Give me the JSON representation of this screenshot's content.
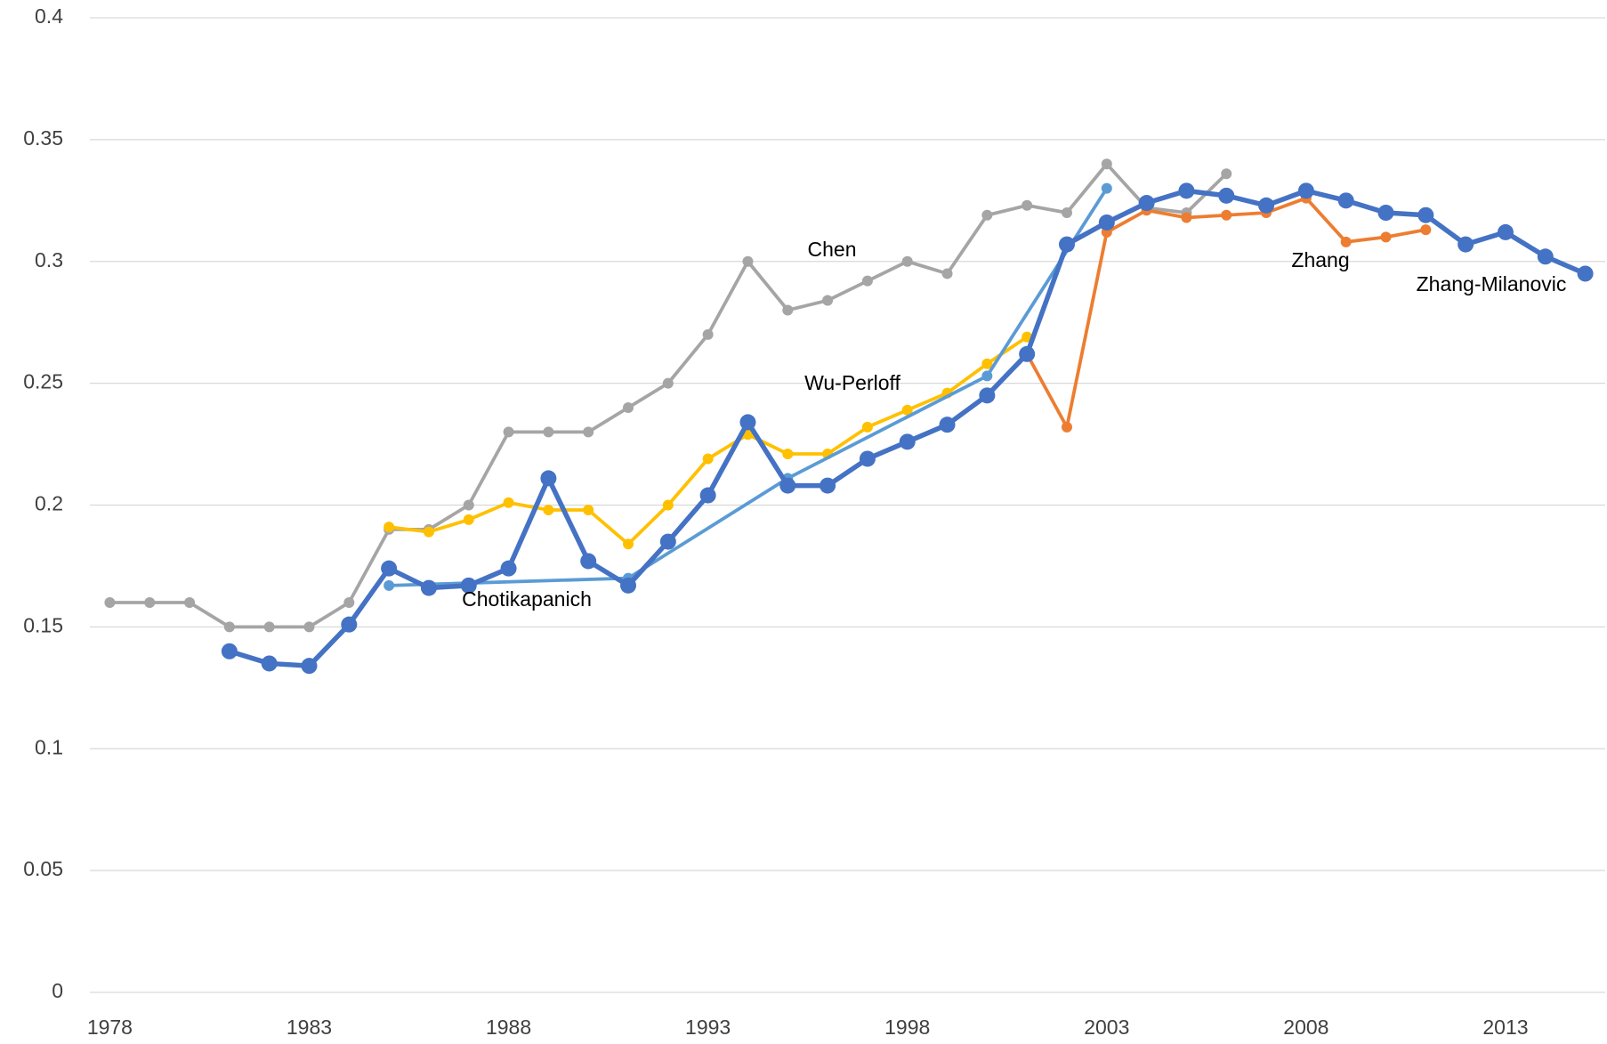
{
  "chart_data": {
    "type": "line",
    "xlim": [
      1977.5,
      2015.5
    ],
    "xticks": [
      1978,
      1983,
      1988,
      1993,
      1998,
      2003,
      2008,
      2013
    ],
    "ylim": [
      0,
      0.4
    ],
    "yticks": [
      0,
      0.05,
      0.1,
      0.15,
      0.2,
      0.25,
      0.3,
      0.35,
      0.4
    ],
    "grid": true,
    "series": [
      {
        "name": "Chen",
        "color": "#a5a5a5",
        "x": [
          1978,
          1979,
          1980,
          1981,
          1982,
          1983,
          1984,
          1985,
          1986,
          1987,
          1988,
          1989,
          1990,
          1991,
          1992,
          1993,
          1994,
          1995,
          1996,
          1997,
          1998,
          1999,
          2000,
          2001,
          2002,
          2003,
          2004,
          2005,
          2006
        ],
        "values": [
          0.16,
          0.16,
          0.16,
          0.15,
          0.15,
          0.15,
          0.16,
          0.19,
          0.19,
          0.2,
          0.23,
          0.23,
          0.23,
          0.24,
          0.25,
          0.27,
          0.3,
          0.28,
          0.284,
          0.292,
          0.3,
          0.295,
          0.319,
          0.323,
          0.32,
          0.34,
          0.322,
          0.32,
          0.336
        ]
      },
      {
        "name": "Wu-Perloff",
        "color": "#ffc000",
        "x": [
          1985,
          1986,
          1987,
          1988,
          1989,
          1990,
          1991,
          1992,
          1993,
          1994,
          1995,
          1996,
          1997,
          1998,
          1999,
          2000,
          2001
        ],
        "values": [
          0.191,
          0.189,
          0.194,
          0.201,
          0.198,
          0.198,
          0.184,
          0.2,
          0.219,
          0.229,
          0.221,
          0.221,
          0.232,
          0.239,
          0.246,
          0.258,
          0.269
        ]
      },
      {
        "name": "Chotikapanich",
        "color": "#5b9bd5",
        "x": [
          1985,
          1991,
          1995,
          2000,
          2003
        ],
        "values": [
          0.167,
          0.17,
          0.211,
          0.253,
          0.33
        ]
      },
      {
        "name": "Zhang",
        "color": "#ed7d31",
        "x": [
          2001,
          2002,
          2003,
          2004,
          2005,
          2006,
          2007,
          2008,
          2009,
          2010,
          2011
        ],
        "values": [
          0.262,
          0.232,
          0.312,
          0.321,
          0.318,
          0.319,
          0.32,
          0.326,
          0.308,
          0.31,
          0.313
        ]
      },
      {
        "name": "Zhang-Milanovic",
        "color": "#4472c4",
        "x": [
          1981,
          1982,
          1983,
          1984,
          1985,
          1986,
          1987,
          1988,
          1989,
          1990,
          1991,
          1992,
          1993,
          1994,
          1995,
          1996,
          1997,
          1998,
          1999,
          2000,
          2001,
          2002,
          2003,
          2004,
          2005,
          2006,
          2007,
          2008,
          2009,
          2010,
          2011,
          2012,
          2013,
          2014,
          2015
        ],
        "values": [
          0.14,
          0.135,
          0.134,
          0.151,
          0.174,
          0.166,
          0.167,
          0.174,
          0.211,
          0.177,
          0.167,
          0.185,
          0.204,
          0.234,
          0.208,
          0.208,
          0.219,
          0.226,
          0.233,
          0.245,
          0.262,
          0.307,
          0.316,
          0.324,
          0.329,
          0.327,
          0.323,
          0.329,
          0.325,
          0.32,
          0.319,
          0.307,
          0.312,
          0.302,
          0.295
        ]
      }
    ]
  }
}
